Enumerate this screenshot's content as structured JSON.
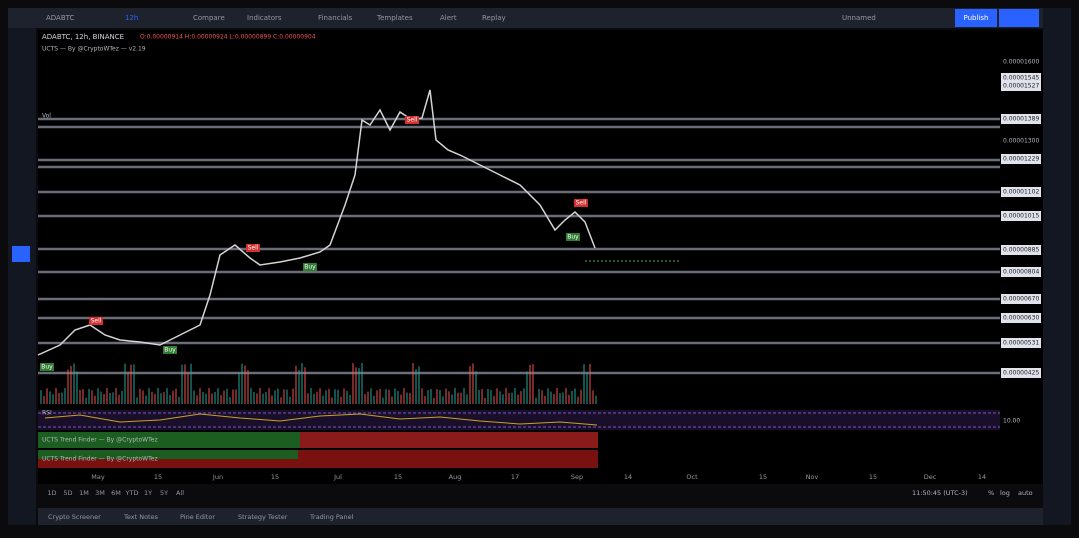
{
  "toolbar": {
    "symbol": "ADABTC",
    "interval": "12h",
    "items": [
      "Compare",
      "Indicators",
      "Financials",
      "Templates",
      "Alert",
      "Replay"
    ],
    "layout_name": "Unnamed",
    "publish": "Publish"
  },
  "legend": {
    "symbol_line": "ADABTC, 12h, BINANCE",
    "ohlc": "O:0.00000914 H:0.00000924 L:0.00000899 C:0.00000904",
    "indicator": "UCTS — By @CryptoWTez — v2.19",
    "volume": "Vol"
  },
  "price_axis": [
    "0.00001600",
    "0.00001545",
    "0.00001527",
    "0.00001389",
    "0.00001300",
    "0.00001229",
    "0.00001102",
    "0.00001015",
    "0.00000885",
    "0.00000804",
    "0.00000670",
    "0.00000630",
    "0.00000531",
    "0.00000425",
    "10.00"
  ],
  "signals": [
    "Sell",
    "Buy",
    "Buy",
    "Sell",
    "Buy",
    "Sell",
    "Sell",
    "Buy"
  ],
  "panes": {
    "rsi": "RSI",
    "trend_finder": [
      "UCTS Trend Finder — By @CryptoWTez",
      "UCTS Trend Finder — By @CryptoWTez"
    ]
  },
  "time_axis": [
    "May",
    "15",
    "Jun",
    "15",
    "Jul",
    "15",
    "Aug",
    "17",
    "Sep",
    "14",
    "Oct",
    "15",
    "Nov",
    "15",
    "Dec",
    "14"
  ],
  "range_buttons": [
    "1D",
    "5D",
    "1M",
    "3M",
    "6M",
    "YTD",
    "1Y",
    "5Y",
    "All"
  ],
  "clock": "11:50:45 (UTC-3)",
  "scale_options": [
    "%",
    "log",
    "auto"
  ],
  "bottom_tabs": [
    "Crypto Screener",
    "Text Notes",
    "Pine Editor",
    "Strategy Tester",
    "Trading Panel"
  ]
}
